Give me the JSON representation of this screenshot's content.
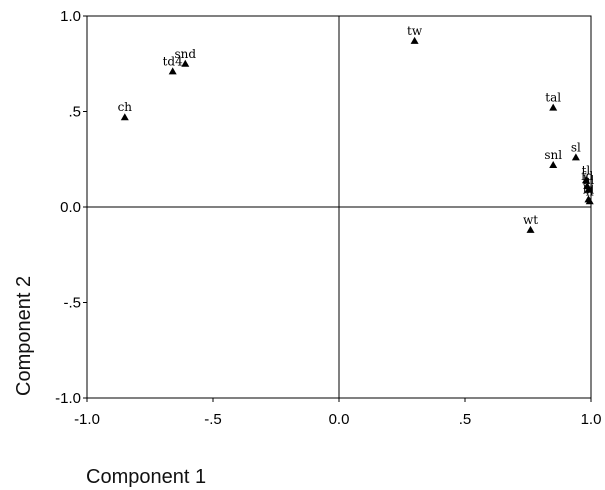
{
  "chart_data": {
    "type": "scatter",
    "xlabel": "Component 1",
    "ylabel": "Component 2",
    "xlim": [
      -1.0,
      1.0
    ],
    "ylim": [
      -1.0,
      1.0
    ],
    "x_ticks": [
      {
        "value": -1.0,
        "label": "-1.0"
      },
      {
        "value": -0.5,
        "label": "-.5"
      },
      {
        "value": 0.0,
        "label": "0.0"
      },
      {
        "value": 0.5,
        "label": ".5"
      },
      {
        "value": 1.0,
        "label": "1.0"
      }
    ],
    "y_ticks": [
      {
        "value": 1.0,
        "label": "1.0"
      },
      {
        "value": 0.5,
        "label": ".5"
      },
      {
        "value": 0.0,
        "label": "0.0"
      },
      {
        "value": -0.5,
        "label": "-.5"
      },
      {
        "value": -1.0,
        "label": "-1.0"
      }
    ],
    "reference_lines": {
      "x": 0,
      "y": 0
    },
    "marker": "triangle",
    "grid": false,
    "points": [
      {
        "label": "ch",
        "x": -0.85,
        "y": 0.47
      },
      {
        "label": "td4",
        "x": -0.66,
        "y": 0.71
      },
      {
        "label": "snd",
        "x": -0.61,
        "y": 0.75
      },
      {
        "label": "tw",
        "x": 0.3,
        "y": 0.87
      },
      {
        "label": "tal",
        "x": 0.85,
        "y": 0.52
      },
      {
        "label": "sl",
        "x": 0.94,
        "y": 0.26
      },
      {
        "label": "snl",
        "x": 0.85,
        "y": 0.22
      },
      {
        "label": "tl",
        "x": 0.98,
        "y": 0.14
      },
      {
        "label": "fd",
        "x": 0.985,
        "y": 0.11
      },
      {
        "label": "hl",
        "x": 0.99,
        "y": 0.09
      },
      {
        "label": "bl",
        "x": 0.99,
        "y": 0.04
      },
      {
        "label": "fl",
        "x": 0.995,
        "y": 0.03
      },
      {
        "label": "wt",
        "x": 0.76,
        "y": -0.12
      }
    ]
  }
}
